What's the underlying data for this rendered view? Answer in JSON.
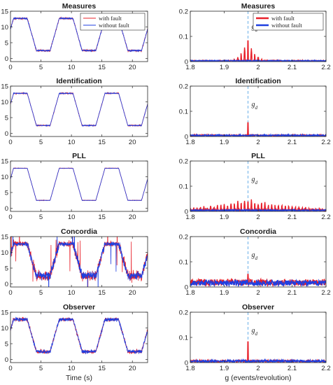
{
  "colors": {
    "fault": "#e8202a",
    "nofault": "#1f3fe0",
    "marker": "#5aa7e6",
    "axis": "#262626"
  },
  "common": {
    "xlabel_time": "Time (s)",
    "xlabel_freq": "g (events/revolution)",
    "annotation": "g",
    "annotation_sub": "d",
    "legend": [
      "with fault",
      "without fault"
    ]
  },
  "chart_data": [
    {
      "type": "line",
      "title": "Measures",
      "xlim": [
        0,
        22.5
      ],
      "ylim": [
        -1,
        15
      ],
      "xticks": [
        0,
        5,
        10,
        15,
        20
      ],
      "yticks": [
        0,
        5,
        10,
        15
      ],
      "xlabel": "",
      "series": [
        {
          "name": "with fault"
        },
        {
          "name": "without fault"
        }
      ],
      "signal": {
        "period": 7.5,
        "start_phase": 1.0,
        "low": 2.5,
        "high": 12.7,
        "noise_fault": 0.5,
        "noise_nofault": 0.4
      }
    },
    {
      "type": "line",
      "title": "Measures",
      "xlim": [
        1.8,
        2.2
      ],
      "ylim": [
        0,
        0.2
      ],
      "xticks": [
        1.8,
        1.9,
        2,
        2.1,
        2.2
      ],
      "yticks": [
        0,
        0.1,
        0.2
      ],
      "xlabel": "",
      "marker_x": 1.97,
      "series": [
        {
          "name": "with fault"
        },
        {
          "name": "without fault"
        }
      ],
      "spectrum": {
        "peak": 0.098,
        "side_scale": 0.09,
        "side_decay": 0.55,
        "floor_fault": 0.003,
        "floor_nofault": 0.003
      }
    },
    {
      "type": "line",
      "title": "Identification",
      "xlim": [
        0,
        22.5
      ],
      "ylim": [
        -1,
        15
      ],
      "xticks": [
        0,
        5,
        10,
        15,
        20
      ],
      "yticks": [
        0,
        5,
        10,
        15
      ],
      "xlabel": "",
      "signal": {
        "period": 7.5,
        "start_phase": 1.0,
        "low": 2.5,
        "high": 12.7,
        "noise_fault": 0.25,
        "noise_nofault": 0.2
      }
    },
    {
      "type": "line",
      "title": "Identification",
      "xlim": [
        1.8,
        2.2
      ],
      "ylim": [
        0,
        0.2
      ],
      "xticks": [
        1.8,
        1.9,
        2,
        2.1,
        2.2
      ],
      "yticks": [
        0,
        0.1,
        0.2
      ],
      "xlabel": "",
      "marker_x": 1.97,
      "spectrum": {
        "peak": 0.065,
        "side_scale": 0.012,
        "side_decay": 0.7,
        "floor_fault": 0.004,
        "floor_nofault": 0.004
      }
    },
    {
      "type": "line",
      "title": "PLL",
      "xlim": [
        0,
        22.5
      ],
      "ylim": [
        -1,
        15
      ],
      "xticks": [
        0,
        5,
        10,
        15,
        20
      ],
      "yticks": [
        0,
        5,
        10,
        15
      ],
      "xlabel": "",
      "signal": {
        "period": 7.5,
        "start_phase": 1.0,
        "low": 2.5,
        "high": 12.7,
        "noise_fault": 0.1,
        "noise_nofault": 0.05
      }
    },
    {
      "type": "line",
      "title": "PLL",
      "xlim": [
        1.8,
        2.2
      ],
      "ylim": [
        0,
        0.2
      ],
      "xticks": [
        1.8,
        1.9,
        2,
        2.1,
        2.2
      ],
      "yticks": [
        0,
        0.1,
        0.2
      ],
      "xlabel": "",
      "marker_x": 1.97,
      "spectrum": {
        "peak": 0.045,
        "side_scale": 0.04,
        "side_decay": 0.06,
        "floor_fault": 0.005,
        "floor_nofault": 0.004
      }
    },
    {
      "type": "line",
      "title": "Concordia",
      "xlim": [
        0,
        22.5
      ],
      "ylim": [
        -1,
        15
      ],
      "xticks": [
        0,
        5,
        10,
        15,
        20
      ],
      "yticks": [
        0,
        5,
        10,
        15
      ],
      "xlabel": "",
      "signal": {
        "period": 7.5,
        "start_phase": 1.0,
        "low": 2.5,
        "high": 12.7,
        "noise_fault": 1.6,
        "noise_nofault": 1.3,
        "spiky": true
      }
    },
    {
      "type": "line",
      "title": "Concordia",
      "xlim": [
        1.8,
        2.2
      ],
      "ylim": [
        0,
        0.2
      ],
      "xticks": [
        1.8,
        1.9,
        2,
        2.1,
        2.2
      ],
      "yticks": [
        0,
        0.1,
        0.2
      ],
      "xlabel": "",
      "marker_x": 1.97,
      "spectrum": {
        "peak": 0.06,
        "side_scale": 0.02,
        "side_decay": 0.03,
        "floor_fault": 0.018,
        "floor_nofault": 0.016
      }
    },
    {
      "type": "line",
      "title": "Observer",
      "xlim": [
        0,
        22.5
      ],
      "ylim": [
        -1,
        15
      ],
      "xticks": [
        0,
        5,
        10,
        15,
        20
      ],
      "yticks": [
        0,
        5,
        10,
        15
      ],
      "xlabel": "Time (s)",
      "signal": {
        "period": 7.5,
        "start_phase": 1.0,
        "low": 2.5,
        "high": 12.7,
        "noise_fault": 1.0,
        "noise_nofault": 0.9
      }
    },
    {
      "type": "line",
      "title": "Observer",
      "xlim": [
        1.8,
        2.2
      ],
      "ylim": [
        0,
        0.2
      ],
      "xticks": [
        1.8,
        1.9,
        2,
        2.1,
        2.2
      ],
      "yticks": [
        0,
        0.1,
        0.2
      ],
      "xlabel": "g (events/revolution)",
      "marker_x": 1.97,
      "spectrum": {
        "peak": 0.098,
        "side_scale": 0.012,
        "side_decay": 0.6,
        "floor_fault": 0.006,
        "floor_nofault": 0.006
      }
    }
  ]
}
